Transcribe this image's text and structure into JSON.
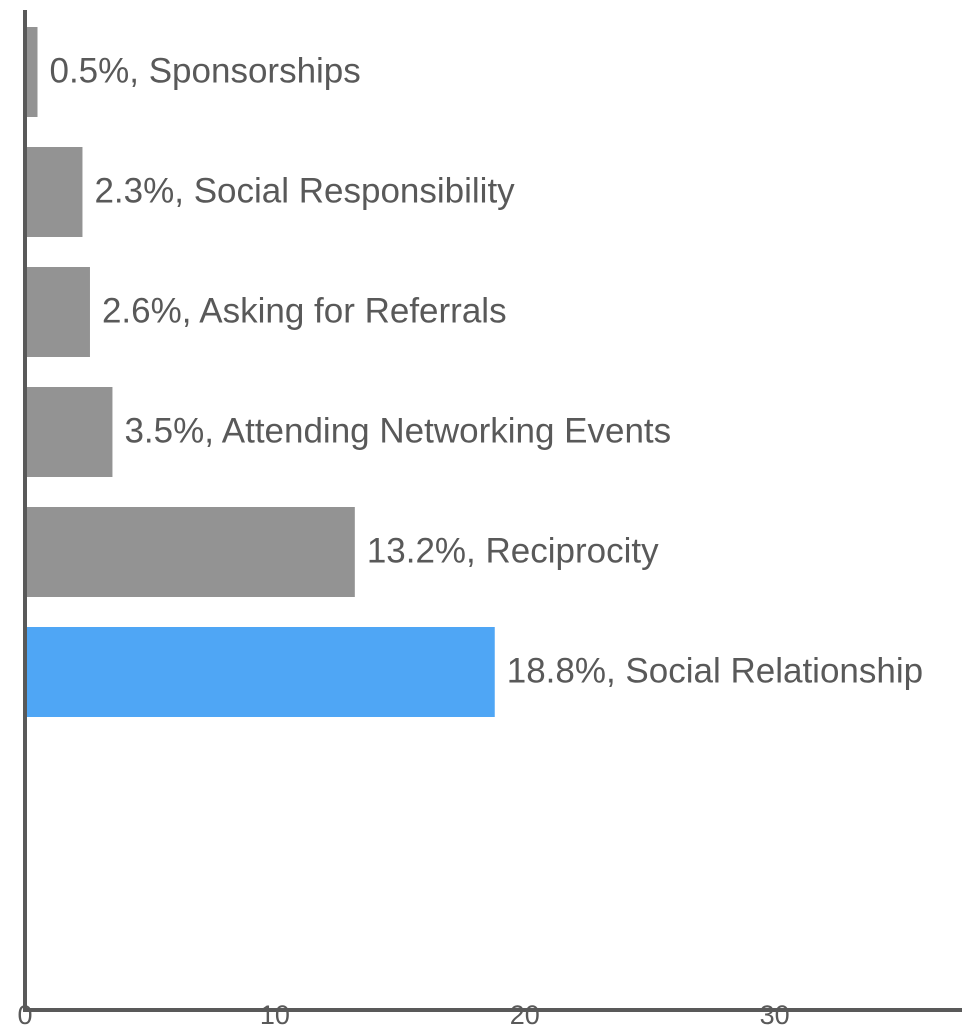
{
  "chart_data": {
    "type": "barh",
    "values": [
      0.5,
      2.3,
      2.6,
      3.5,
      13.2,
      18.8
    ],
    "value_labels": [
      "0.5%, Sponsorships",
      "2.3%, Social Responsibility",
      "2.6%, Asking for Referrals",
      "3.5%, Attending Networking Events",
      "13.2%, Reciprocity",
      "18.8%, Social Relationship"
    ],
    "colors": [
      "#939393",
      "#939393",
      "#939393",
      "#939393",
      "#939393",
      "#4fa6f5"
    ],
    "xlim": [
      0,
      37.5
    ],
    "xticks": [
      0,
      10,
      20,
      30
    ],
    "grid": false
  }
}
